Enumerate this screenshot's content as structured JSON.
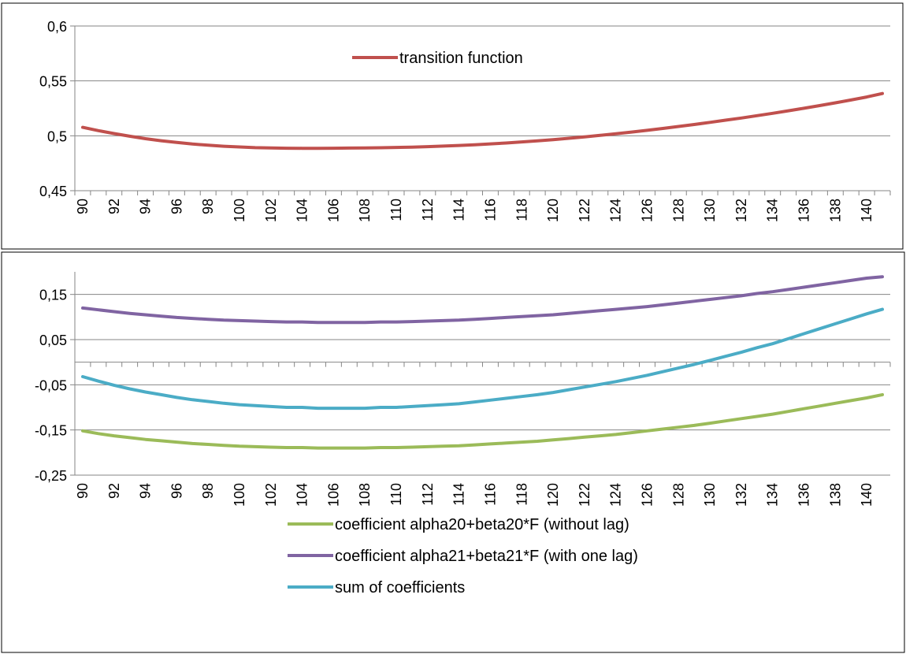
{
  "chart_data": [
    {
      "type": "line",
      "x": [
        90,
        91,
        92,
        93,
        94,
        95,
        96,
        97,
        98,
        99,
        100,
        101,
        102,
        103,
        104,
        105,
        106,
        107,
        108,
        109,
        110,
        111,
        112,
        113,
        114,
        115,
        116,
        117,
        118,
        119,
        120,
        121,
        122,
        123,
        124,
        125,
        126,
        127,
        128,
        129,
        130,
        131,
        132,
        133,
        134,
        135,
        136,
        137,
        138,
        139,
        140,
        141
      ],
      "x_tick_labels": [
        "90",
        "92",
        "94",
        "96",
        "98",
        "100",
        "102",
        "104",
        "106",
        "108",
        "110",
        "112",
        "114",
        "116",
        "118",
        "120",
        "122",
        "124",
        "126",
        "128",
        "130",
        "132",
        "134",
        "136",
        "138",
        "140"
      ],
      "y_tick_labels": [
        "0,6",
        "0,55",
        "0,5",
        "0,45"
      ],
      "ylim": [
        0.45,
        0.6
      ],
      "yticks": [
        0.6,
        0.55,
        0.5,
        0.45
      ],
      "grid": true,
      "legend_position": "top-center",
      "series": [
        {
          "name": "transition function",
          "color": "#C0504D",
          "values": [
            0.5077,
            0.5047,
            0.502,
            0.4996,
            0.4974,
            0.4955,
            0.4939,
            0.4925,
            0.4914,
            0.4905,
            0.4898,
            0.4892,
            0.4889,
            0.4887,
            0.4886,
            0.4886,
            0.4887,
            0.4888,
            0.4889,
            0.4891,
            0.4894,
            0.4897,
            0.4901,
            0.4906,
            0.4912,
            0.4918,
            0.4926,
            0.4934,
            0.4944,
            0.4954,
            0.4965,
            0.4977,
            0.499,
            0.5004,
            0.5019,
            0.5034,
            0.505,
            0.5067,
            0.5085,
            0.5103,
            0.5122,
            0.5142,
            0.5162,
            0.5183,
            0.5205,
            0.5228,
            0.5251,
            0.5275,
            0.53,
            0.5326,
            0.5353,
            0.5385
          ]
        }
      ]
    },
    {
      "type": "line",
      "x": [
        90,
        91,
        92,
        93,
        94,
        95,
        96,
        97,
        98,
        99,
        100,
        101,
        102,
        103,
        104,
        105,
        106,
        107,
        108,
        109,
        110,
        111,
        112,
        113,
        114,
        115,
        116,
        117,
        118,
        119,
        120,
        121,
        122,
        123,
        124,
        125,
        126,
        127,
        128,
        129,
        130,
        131,
        132,
        133,
        134,
        135,
        136,
        137,
        138,
        139,
        140,
        141
      ],
      "x_tick_labels": [
        "90",
        "92",
        "94",
        "96",
        "98",
        "100",
        "102",
        "104",
        "106",
        "108",
        "110",
        "112",
        "114",
        "116",
        "118",
        "120",
        "122",
        "124",
        "126",
        "128",
        "130",
        "132",
        "134",
        "136",
        "138",
        "140"
      ],
      "y_tick_labels": [
        "0,15",
        "0,05",
        "-0,05",
        "-0,15",
        "-0,25"
      ],
      "ylim": [
        -0.25,
        0.2
      ],
      "yticks": [
        0.15,
        0.05,
        -0.05,
        -0.15,
        -0.25
      ],
      "grid": true,
      "legend_position": "bottom",
      "series": [
        {
          "name": "coefficient alpha20+beta20*F (without lag)",
          "color": "#9BBB59",
          "values": [
            -0.152,
            -0.158,
            -0.163,
            -0.167,
            -0.171,
            -0.174,
            -0.177,
            -0.18,
            -0.182,
            -0.184,
            -0.186,
            -0.187,
            -0.188,
            -0.189,
            -0.189,
            -0.19,
            -0.19,
            -0.19,
            -0.19,
            -0.189,
            -0.189,
            -0.188,
            -0.187,
            -0.186,
            -0.185,
            -0.183,
            -0.181,
            -0.179,
            -0.177,
            -0.175,
            -0.172,
            -0.169,
            -0.166,
            -0.163,
            -0.16,
            -0.156,
            -0.152,
            -0.148,
            -0.144,
            -0.14,
            -0.135,
            -0.13,
            -0.125,
            -0.12,
            -0.115,
            -0.109,
            -0.103,
            -0.097,
            -0.091,
            -0.085,
            -0.079,
            -0.072
          ]
        },
        {
          "name": "coefficient alpha21+beta21*F (with one lag)",
          "color": "#8064A2",
          "values": [
            0.12,
            0.116,
            0.112,
            0.108,
            0.105,
            0.102,
            0.099,
            0.097,
            0.095,
            0.093,
            0.092,
            0.091,
            0.09,
            0.089,
            0.089,
            0.088,
            0.088,
            0.088,
            0.088,
            0.089,
            0.089,
            0.09,
            0.091,
            0.092,
            0.093,
            0.095,
            0.097,
            0.099,
            0.101,
            0.103,
            0.105,
            0.108,
            0.111,
            0.114,
            0.117,
            0.12,
            0.123,
            0.127,
            0.131,
            0.135,
            0.139,
            0.143,
            0.147,
            0.152,
            0.156,
            0.161,
            0.166,
            0.171,
            0.176,
            0.181,
            0.186,
            0.189
          ]
        },
        {
          "name": "sum of coefficients",
          "color": "#4BACC6",
          "values": [
            -0.032,
            -0.042,
            -0.051,
            -0.059,
            -0.066,
            -0.072,
            -0.078,
            -0.083,
            -0.087,
            -0.091,
            -0.094,
            -0.096,
            -0.098,
            -0.1,
            -0.1,
            -0.102,
            -0.102,
            -0.102,
            -0.102,
            -0.1,
            -0.1,
            -0.098,
            -0.096,
            -0.094,
            -0.092,
            -0.088,
            -0.084,
            -0.08,
            -0.076,
            -0.072,
            -0.067,
            -0.061,
            -0.055,
            -0.049,
            -0.043,
            -0.036,
            -0.029,
            -0.021,
            -0.013,
            -0.005,
            0.004,
            0.013,
            0.022,
            0.032,
            0.041,
            0.052,
            0.063,
            0.074,
            0.085,
            0.096,
            0.107,
            0.117
          ]
        }
      ]
    }
  ]
}
